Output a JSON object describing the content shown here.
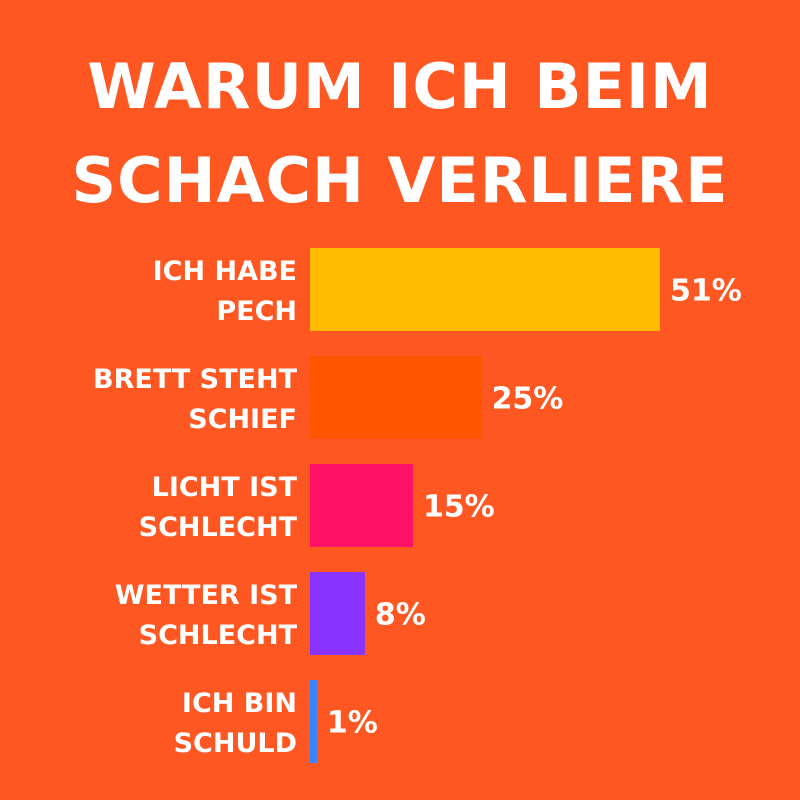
{
  "chart_data": {
    "type": "bar",
    "orientation": "horizontal",
    "title_lines": [
      "WARUM ICH BEIM",
      "SCHACH VERLIERE"
    ],
    "categories": [
      [
        "ICH HABE",
        "PECH"
      ],
      [
        "BRETT STEHT",
        "SCHIEF"
      ],
      [
        "LICHT IST",
        "SCHLECHT"
      ],
      [
        "WETTER IST",
        "SCHLECHT"
      ],
      [
        "ICH BIN",
        "SCHULD"
      ]
    ],
    "values": [
      51,
      25,
      15,
      8,
      1
    ],
    "value_labels": [
      "51%",
      "25%",
      "15%",
      "8%",
      "1%"
    ],
    "unit": "%",
    "bar_colors": [
      "#ffbb00",
      "#ff5500",
      "#ff1166",
      "#8833ff",
      "#3388ff"
    ],
    "background_color": "#ff5722",
    "text_color": "#ffffff",
    "grid": false,
    "legend": false
  }
}
